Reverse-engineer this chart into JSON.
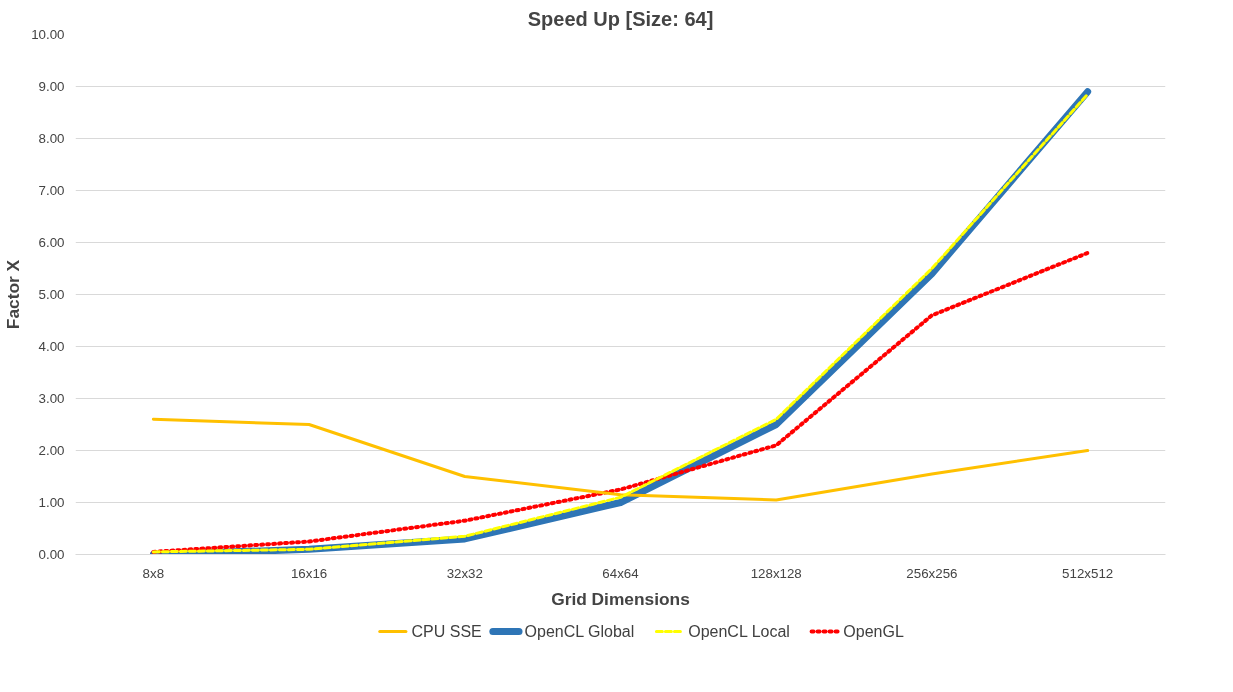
{
  "chart_data": {
    "type": "line",
    "title": "Speed Up [Size: 64]",
    "xlabel": "Grid Dimensions",
    "ylabel": "Factor X",
    "categories": [
      "8x8",
      "16x16",
      "32x32",
      "64x64",
      "128x128",
      "256x256",
      "512x512"
    ],
    "series": [
      {
        "name": "CPU SSE",
        "color": "#ffc000",
        "line_style": "solid",
        "values": [
          2.6,
          2.5,
          1.5,
          1.15,
          1.05,
          1.55,
          2.0
        ]
      },
      {
        "name": "OpenCL Global",
        "color": "#2e75b6",
        "line_style": "solid",
        "values": [
          0.0,
          0.1,
          0.3,
          1.0,
          2.5,
          5.4,
          8.9
        ]
      },
      {
        "name": "OpenCL Local",
        "color": "#ffff00",
        "line_style": "dashed",
        "values": [
          0.05,
          0.1,
          0.35,
          1.1,
          2.6,
          5.5,
          8.85
        ]
      },
      {
        "name": "OpenGL",
        "color": "#ff0000",
        "line_style": "dotted",
        "values": [
          0.05,
          0.25,
          0.65,
          1.25,
          2.1,
          4.6,
          5.8
        ]
      }
    ],
    "ylim": [
      0,
      10
    ],
    "yticks": [
      {
        "value": 0,
        "label": "0.00"
      },
      {
        "value": 1,
        "label": "1.00"
      },
      {
        "value": 2,
        "label": "2.00"
      },
      {
        "value": 3,
        "label": "3.00"
      },
      {
        "value": 4,
        "label": "4.00"
      },
      {
        "value": 5,
        "label": "5.00"
      },
      {
        "value": 6,
        "label": "6.00"
      },
      {
        "value": 7,
        "label": "7.00"
      },
      {
        "value": 8,
        "label": "8.00"
      },
      {
        "value": 9,
        "label": "9.00"
      },
      {
        "value": 10,
        "label": "10.00"
      }
    ],
    "grid": "y",
    "legend": "bottom",
    "marker": "none"
  }
}
